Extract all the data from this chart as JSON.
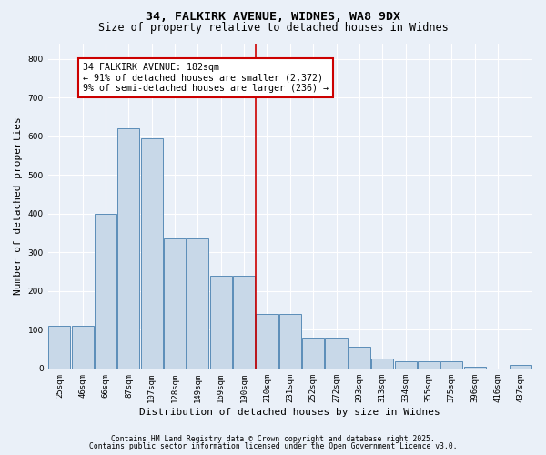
{
  "title1": "34, FALKIRK AVENUE, WIDNES, WA8 9DX",
  "title2": "Size of property relative to detached houses in Widnes",
  "xlabel": "Distribution of detached houses by size in Widnes",
  "ylabel": "Number of detached properties",
  "bar_labels": [
    "25sqm",
    "46sqm",
    "66sqm",
    "87sqm",
    "107sqm",
    "128sqm",
    "149sqm",
    "169sqm",
    "190sqm",
    "210sqm",
    "231sqm",
    "252sqm",
    "272sqm",
    "293sqm",
    "313sqm",
    "334sqm",
    "355sqm",
    "375sqm",
    "396sqm",
    "416sqm",
    "437sqm"
  ],
  "bar_values": [
    110,
    110,
    400,
    620,
    595,
    335,
    335,
    240,
    240,
    140,
    140,
    80,
    80,
    55,
    25,
    18,
    18,
    18,
    5,
    0,
    10
  ],
  "bar_color": "#c8d8e8",
  "bar_edge_color": "#5b8db8",
  "vline_x": 8.5,
  "vline_color": "#cc0000",
  "annotation_text": "34 FALKIRK AVENUE: 182sqm\n← 91% of detached houses are smaller (2,372)\n9% of semi-detached houses are larger (236) →",
  "annotation_box_color": "#ffffff",
  "annotation_box_edge": "#cc0000",
  "ylim": [
    0,
    840
  ],
  "yticks": [
    0,
    100,
    200,
    300,
    400,
    500,
    600,
    700,
    800
  ],
  "footnote1": "Contains HM Land Registry data © Crown copyright and database right 2025.",
  "footnote2": "Contains public sector information licensed under the Open Government Licence v3.0.",
  "bg_color": "#eaf0f8",
  "grid_color": "#ffffff",
  "title_fontsize": 9.5,
  "subtitle_fontsize": 8.5,
  "tick_fontsize": 6.5,
  "label_fontsize": 8,
  "footnote_fontsize": 5.8,
  "annot_fontsize": 7.2
}
